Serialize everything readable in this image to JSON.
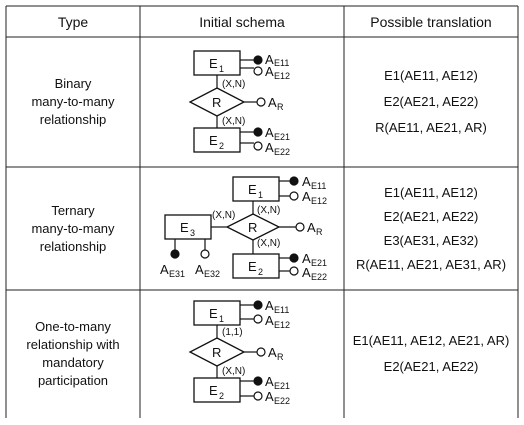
{
  "headers": [
    "Type",
    "Initial schema",
    "Possible translation"
  ],
  "rows": [
    {
      "type": [
        "Binary",
        "many-to-many",
        "relationship"
      ],
      "schema": {
        "entities": [
          "E",
          "E"
        ],
        "relationship": "R",
        "cards": [
          "(X,N)",
          "(X,N)"
        ],
        "attrs": [
          [
            "A",
            "E11"
          ],
          [
            "A",
            "E12"
          ],
          [
            "A",
            "R"
          ],
          [
            "A",
            "E21"
          ],
          [
            "A",
            "E22"
          ]
        ]
      },
      "translation": [
        "E1(AE11, AE12)",
        "E2(AE21, AE22)",
        "R(AE11, AE21, AR)"
      ]
    },
    {
      "type": [
        "Ternary",
        "many-to-many",
        "relationship"
      ],
      "schema": {
        "entities": [
          "E",
          "E",
          "E"
        ],
        "relationship": "R",
        "cards": [
          "(X,N)",
          "(X,N)",
          "(X,N)"
        ],
        "attrs": [
          [
            "A",
            "E11"
          ],
          [
            "A",
            "E12"
          ],
          [
            "A",
            "R"
          ],
          [
            "A",
            "E21"
          ],
          [
            "A",
            "E22"
          ],
          [
            "A",
            "E31"
          ],
          [
            "A",
            "E32"
          ]
        ]
      },
      "translation": [
        "E1(AE11, AE12)",
        "E2(AE21, AE22)",
        "E3(AE31, AE32)",
        "R(AE11, AE21, AE31, AR)"
      ]
    },
    {
      "type": [
        "One-to-many",
        "relationship with",
        "mandatory",
        "participation"
      ],
      "schema": {
        "entities": [
          "E",
          "E"
        ],
        "relationship": "R",
        "cards": [
          "(1,1)",
          "(X,N)"
        ],
        "attrs": [
          [
            "A",
            "E11"
          ],
          [
            "A",
            "E12"
          ],
          [
            "A",
            "R"
          ],
          [
            "A",
            "E21"
          ],
          [
            "A",
            "E22"
          ]
        ]
      },
      "translation": [
        "E1(AE11, AE12, AE21, AR)",
        "E2(AE21, AE22)"
      ]
    }
  ]
}
